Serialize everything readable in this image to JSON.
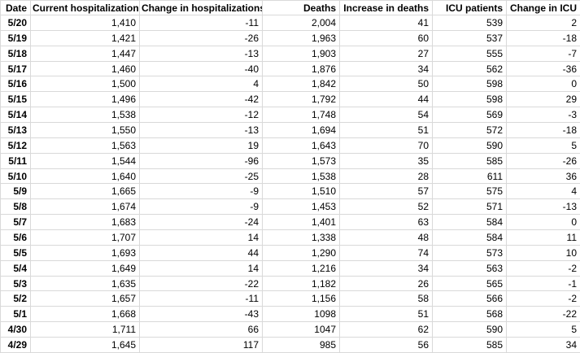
{
  "colors": {
    "grid_line": "#d9d9d9",
    "text": "#000000",
    "background": "#ffffff"
  },
  "table": {
    "columns": [
      "Date",
      "Current hospitalizations",
      "Change in hospitalizations",
      "Deaths",
      "Increase in deaths",
      "ICU patients",
      "Change in ICU"
    ],
    "rows": [
      [
        "5/20",
        "1,410",
        "-11",
        "2,004",
        "41",
        "539",
        "2"
      ],
      [
        "5/19",
        "1,421",
        "-26",
        "1,963",
        "60",
        "537",
        "-18"
      ],
      [
        "5/18",
        "1,447",
        "-13",
        "1,903",
        "27",
        "555",
        "-7"
      ],
      [
        "5/17",
        "1,460",
        "-40",
        "1,876",
        "34",
        "562",
        "-36"
      ],
      [
        "5/16",
        "1,500",
        "4",
        "1,842",
        "50",
        "598",
        "0"
      ],
      [
        "5/15",
        "1,496",
        "-42",
        "1,792",
        "44",
        "598",
        "29"
      ],
      [
        "5/14",
        "1,538",
        "-12",
        "1,748",
        "54",
        "569",
        "-3"
      ],
      [
        "5/13",
        "1,550",
        "-13",
        "1,694",
        "51",
        "572",
        "-18"
      ],
      [
        "5/12",
        "1,563",
        "19",
        "1,643",
        "70",
        "590",
        "5"
      ],
      [
        "5/11",
        "1,544",
        "-96",
        "1,573",
        "35",
        "585",
        "-26"
      ],
      [
        "5/10",
        "1,640",
        "-25",
        "1,538",
        "28",
        "611",
        "36"
      ],
      [
        "5/9",
        "1,665",
        "-9",
        "1,510",
        "57",
        "575",
        "4"
      ],
      [
        "5/8",
        "1,674",
        "-9",
        "1,453",
        "52",
        "571",
        "-13"
      ],
      [
        "5/7",
        "1,683",
        "-24",
        "1,401",
        "63",
        "584",
        "0"
      ],
      [
        "5/6",
        "1,707",
        "14",
        "1,338",
        "48",
        "584",
        "11"
      ],
      [
        "5/5",
        "1,693",
        "44",
        "1,290",
        "74",
        "573",
        "10"
      ],
      [
        "5/4",
        "1,649",
        "14",
        "1,216",
        "34",
        "563",
        "-2"
      ],
      [
        "5/3",
        "1,635",
        "-22",
        "1,182",
        "26",
        "565",
        "-1"
      ],
      [
        "5/2",
        "1,657",
        "-11",
        "1,156",
        "58",
        "566",
        "-2"
      ],
      [
        "5/1",
        "1,668",
        "-43",
        "1098",
        "51",
        "568",
        "-22"
      ],
      [
        "4/30",
        "1,711",
        "66",
        "1047",
        "62",
        "590",
        "5"
      ],
      [
        "4/29",
        "1,645",
        "117",
        "985",
        "56",
        "585",
        "34"
      ]
    ]
  }
}
